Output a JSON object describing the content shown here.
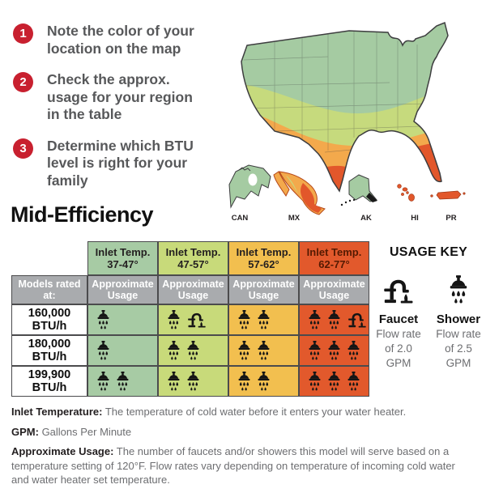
{
  "title": "Mid-Efficiency",
  "accent_color": "#c8202f",
  "steps": [
    {
      "num": "1",
      "text": "Note the color of your location on the map"
    },
    {
      "num": "2",
      "text": "Check the approx. usage for your region in the table"
    },
    {
      "num": "3",
      "text": "Determine which BTU level is right for your family"
    }
  ],
  "map": {
    "band_colors": {
      "green": "#a5cba2",
      "yellow_green": "#c6da7d",
      "orange": "#f3a94c",
      "red": "#e2572b"
    },
    "regions": [
      {
        "label": "CAN",
        "color": "#a5cba2"
      },
      {
        "label": "MX",
        "color": "#f3a94c"
      },
      {
        "label": "AK",
        "color": "#a5cba2"
      },
      {
        "label": "HI",
        "color": "#e2572b"
      },
      {
        "label": "PR",
        "color": "#e2572b"
      }
    ]
  },
  "table": {
    "corner_label": "Models rated at:",
    "usage_header": "Approximate Usage",
    "header_gray": "#a9abae",
    "columns": [
      {
        "label": "Inlet Temp.",
        "range": "37-47°",
        "color": "#a7cba4",
        "text_color": "#231f20"
      },
      {
        "label": "Inlet Temp.",
        "range": "47-57°",
        "color": "#c8da7a",
        "text_color": "#231f20"
      },
      {
        "label": "Inlet Temp.",
        "range": "57-62°",
        "color": "#f2bf4f",
        "text_color": "#231f20"
      },
      {
        "label": "Inlet Temp.",
        "range": "62-77°",
        "color": "#e2592c",
        "text_color": "#541a02"
      }
    ],
    "rows": [
      {
        "model": "160,000 BTU/h",
        "usage": [
          {
            "showers": 1,
            "faucets": 0
          },
          {
            "showers": 1,
            "faucets": 1
          },
          {
            "showers": 2,
            "faucets": 0
          },
          {
            "showers": 2,
            "faucets": 1
          }
        ]
      },
      {
        "model": "180,000 BTU/h",
        "usage": [
          {
            "showers": 1,
            "faucets": 0
          },
          {
            "showers": 2,
            "faucets": 0
          },
          {
            "showers": 2,
            "faucets": 0
          },
          {
            "showers": 3,
            "faucets": 0
          }
        ]
      },
      {
        "model": "199,900 BTU/h",
        "usage": [
          {
            "showers": 2,
            "faucets": 0
          },
          {
            "showers": 2,
            "faucets": 0
          },
          {
            "showers": 2,
            "faucets": 0
          },
          {
            "showers": 3,
            "faucets": 0
          }
        ]
      }
    ]
  },
  "usage_key": {
    "title": "USAGE KEY",
    "items": [
      {
        "icon": "faucet-icon",
        "name": "Faucet",
        "line1": "Flow rate",
        "line2": "of 2.0 GPM"
      },
      {
        "icon": "shower-icon",
        "name": "Shower",
        "line1": "Flow rate",
        "line2": "of 2.5 GPM"
      }
    ]
  },
  "footnotes": [
    {
      "term": "Inlet Temperature:",
      "text": " The temperature of cold water before it enters your water heater."
    },
    {
      "term": "GPM:",
      "text": " Gallons Per Minute"
    },
    {
      "term": "Approximate Usage:",
      "text": " The number of faucets and/or showers this model will serve based on a temperature setting of 120°F. Flow rates vary depending on temperature of incoming cold water and water heater set temperature."
    }
  ]
}
